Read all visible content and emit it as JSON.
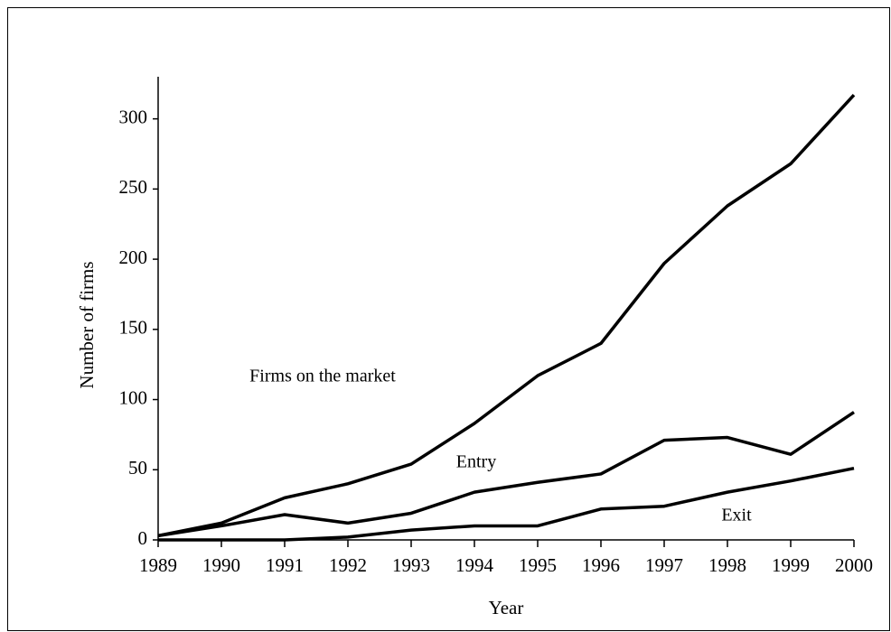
{
  "chart_data": {
    "type": "line",
    "x_label": "Year",
    "y_label": "Number of firms",
    "x": [
      1989,
      1990,
      1991,
      1992,
      1993,
      1994,
      1995,
      1996,
      1997,
      1998,
      1999,
      2000
    ],
    "xlim": [
      1989,
      2000
    ],
    "xticks": [
      1989,
      1990,
      1991,
      1992,
      1993,
      1994,
      1995,
      1996,
      1997,
      1998,
      1999,
      2000
    ],
    "ylim": [
      0,
      330
    ],
    "yticks": [
      0,
      50,
      100,
      150,
      200,
      250,
      300
    ],
    "grid": false,
    "series": [
      {
        "name": "Firms on the market",
        "color": "#000000",
        "values": [
          3,
          12,
          30,
          40,
          54,
          83,
          117,
          140,
          197,
          238,
          268,
          317
        ]
      },
      {
        "name": "Entry",
        "color": "#000000",
        "values": [
          3,
          10,
          18,
          12,
          19,
          34,
          41,
          47,
          71,
          73,
          61,
          91
        ]
      },
      {
        "name": "Exit",
        "color": "#000000",
        "values": [
          0,
          0,
          0,
          2,
          7,
          10,
          10,
          22,
          24,
          34,
          42,
          51
        ]
      }
    ]
  }
}
